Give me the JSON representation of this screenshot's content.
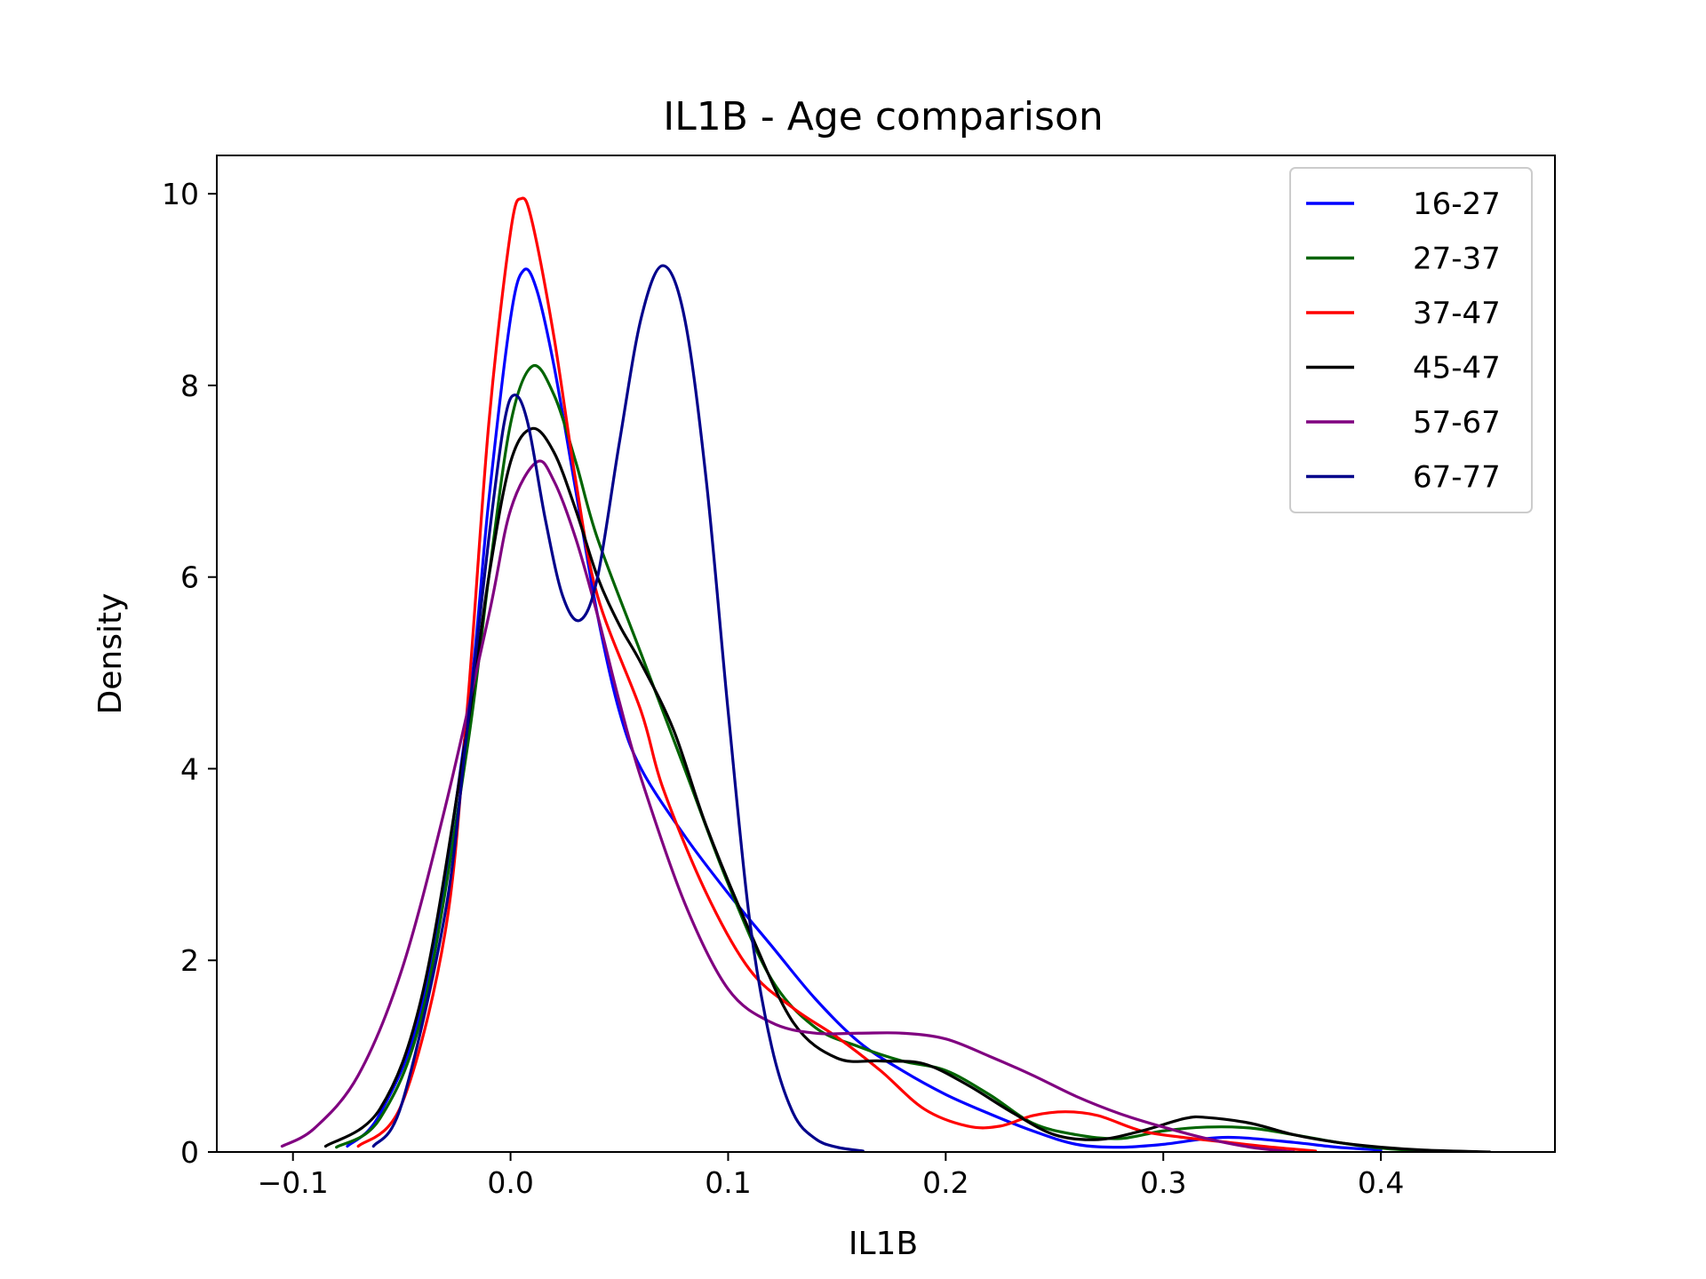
{
  "chart_data": {
    "type": "line",
    "title": "IL1B - Age comparison",
    "xlabel": "IL1B",
    "ylabel": "Density",
    "xlim": [
      -0.135,
      0.48
    ],
    "ylim": [
      0,
      10.4
    ],
    "xticks": [
      -0.1,
      0.0,
      0.1,
      0.2,
      0.3,
      0.4
    ],
    "xtick_labels": [
      "−0.1",
      "0.0",
      "0.1",
      "0.2",
      "0.3",
      "0.4"
    ],
    "yticks": [
      0,
      2,
      4,
      6,
      8,
      10
    ],
    "ytick_labels": [
      "0",
      "2",
      "4",
      "6",
      "8",
      "10"
    ],
    "grid": false,
    "legend_position": "top-right",
    "series": [
      {
        "name": "16-27",
        "color": "#0000ff",
        "points": [
          [
            -0.075,
            0.06
          ],
          [
            -0.06,
            0.4
          ],
          [
            -0.04,
            1.6
          ],
          [
            -0.02,
            4.5
          ],
          [
            -0.01,
            6.8
          ],
          [
            0.0,
            8.7
          ],
          [
            0.006,
            9.2
          ],
          [
            0.012,
            9.0
          ],
          [
            0.02,
            8.2
          ],
          [
            0.03,
            6.9
          ],
          [
            0.04,
            5.6
          ],
          [
            0.05,
            4.6
          ],
          [
            0.06,
            4.0
          ],
          [
            0.08,
            3.3
          ],
          [
            0.1,
            2.7
          ],
          [
            0.12,
            2.15
          ],
          [
            0.14,
            1.6
          ],
          [
            0.16,
            1.15
          ],
          [
            0.18,
            0.85
          ],
          [
            0.2,
            0.6
          ],
          [
            0.22,
            0.4
          ],
          [
            0.24,
            0.22
          ],
          [
            0.26,
            0.08
          ],
          [
            0.28,
            0.05
          ],
          [
            0.3,
            0.08
          ],
          [
            0.32,
            0.14
          ],
          [
            0.335,
            0.15
          ],
          [
            0.36,
            0.1
          ],
          [
            0.38,
            0.05
          ],
          [
            0.4,
            0.02
          ]
        ]
      },
      {
        "name": "27-37",
        "color": "#006400",
        "points": [
          [
            -0.08,
            0.05
          ],
          [
            -0.06,
            0.35
          ],
          [
            -0.04,
            1.5
          ],
          [
            -0.02,
            4.2
          ],
          [
            -0.01,
            6.0
          ],
          [
            0.0,
            7.6
          ],
          [
            0.01,
            8.2
          ],
          [
            0.02,
            7.9
          ],
          [
            0.03,
            7.2
          ],
          [
            0.04,
            6.4
          ],
          [
            0.06,
            5.2
          ],
          [
            0.08,
            4.0
          ],
          [
            0.1,
            2.8
          ],
          [
            0.12,
            1.8
          ],
          [
            0.14,
            1.3
          ],
          [
            0.16,
            1.1
          ],
          [
            0.18,
            0.95
          ],
          [
            0.2,
            0.85
          ],
          [
            0.22,
            0.6
          ],
          [
            0.24,
            0.3
          ],
          [
            0.26,
            0.18
          ],
          [
            0.28,
            0.14
          ],
          [
            0.3,
            0.22
          ],
          [
            0.32,
            0.26
          ],
          [
            0.34,
            0.25
          ],
          [
            0.36,
            0.18
          ],
          [
            0.38,
            0.1
          ],
          [
            0.4,
            0.04
          ],
          [
            0.42,
            0.01
          ]
        ]
      },
      {
        "name": "37-47",
        "color": "#ff0000",
        "points": [
          [
            -0.07,
            0.06
          ],
          [
            -0.05,
            0.5
          ],
          [
            -0.03,
            2.3
          ],
          [
            -0.02,
            4.6
          ],
          [
            -0.01,
            7.6
          ],
          [
            0.0,
            9.6
          ],
          [
            0.005,
            9.95
          ],
          [
            0.01,
            9.7
          ],
          [
            0.02,
            8.5
          ],
          [
            0.03,
            7.0
          ],
          [
            0.04,
            5.8
          ],
          [
            0.06,
            4.6
          ],
          [
            0.07,
            3.8
          ],
          [
            0.09,
            2.7
          ],
          [
            0.11,
            1.9
          ],
          [
            0.13,
            1.5
          ],
          [
            0.15,
            1.2
          ],
          [
            0.17,
            0.85
          ],
          [
            0.19,
            0.45
          ],
          [
            0.21,
            0.27
          ],
          [
            0.225,
            0.27
          ],
          [
            0.24,
            0.38
          ],
          [
            0.255,
            0.42
          ],
          [
            0.27,
            0.38
          ],
          [
            0.29,
            0.22
          ],
          [
            0.31,
            0.15
          ],
          [
            0.33,
            0.1
          ],
          [
            0.35,
            0.05
          ],
          [
            0.37,
            0.01
          ]
        ]
      },
      {
        "name": "45-47",
        "color": "#000000",
        "points": [
          [
            -0.085,
            0.06
          ],
          [
            -0.06,
            0.45
          ],
          [
            -0.04,
            1.7
          ],
          [
            -0.02,
            4.4
          ],
          [
            -0.01,
            6.0
          ],
          [
            0.0,
            7.2
          ],
          [
            0.01,
            7.55
          ],
          [
            0.02,
            7.3
          ],
          [
            0.03,
            6.7
          ],
          [
            0.04,
            6.0
          ],
          [
            0.05,
            5.5
          ],
          [
            0.06,
            5.1
          ],
          [
            0.075,
            4.4
          ],
          [
            0.09,
            3.4
          ],
          [
            0.11,
            2.3
          ],
          [
            0.13,
            1.35
          ],
          [
            0.15,
            0.98
          ],
          [
            0.17,
            0.95
          ],
          [
            0.19,
            0.92
          ],
          [
            0.21,
            0.7
          ],
          [
            0.23,
            0.42
          ],
          [
            0.25,
            0.18
          ],
          [
            0.27,
            0.13
          ],
          [
            0.29,
            0.22
          ],
          [
            0.31,
            0.35
          ],
          [
            0.32,
            0.36
          ],
          [
            0.34,
            0.3
          ],
          [
            0.36,
            0.18
          ],
          [
            0.38,
            0.1
          ],
          [
            0.4,
            0.05
          ],
          [
            0.42,
            0.02
          ],
          [
            0.45,
            0.0
          ]
        ]
      },
      {
        "name": "57-67",
        "color": "#800080",
        "points": [
          [
            -0.105,
            0.06
          ],
          [
            -0.09,
            0.25
          ],
          [
            -0.07,
            0.8
          ],
          [
            -0.05,
            1.9
          ],
          [
            -0.03,
            3.6
          ],
          [
            -0.01,
            5.6
          ],
          [
            0.0,
            6.7
          ],
          [
            0.012,
            7.2
          ],
          [
            0.02,
            7.0
          ],
          [
            0.03,
            6.4
          ],
          [
            0.04,
            5.6
          ],
          [
            0.05,
            4.7
          ],
          [
            0.06,
            3.9
          ],
          [
            0.08,
            2.6
          ],
          [
            0.1,
            1.7
          ],
          [
            0.12,
            1.35
          ],
          [
            0.14,
            1.24
          ],
          [
            0.16,
            1.24
          ],
          [
            0.18,
            1.24
          ],
          [
            0.2,
            1.18
          ],
          [
            0.22,
            1.0
          ],
          [
            0.24,
            0.8
          ],
          [
            0.26,
            0.58
          ],
          [
            0.28,
            0.4
          ],
          [
            0.3,
            0.26
          ],
          [
            0.32,
            0.14
          ],
          [
            0.34,
            0.05
          ],
          [
            0.36,
            0.0
          ]
        ]
      },
      {
        "name": "67-77",
        "color": "#00008b",
        "points": [
          [
            -0.063,
            0.06
          ],
          [
            -0.05,
            0.5
          ],
          [
            -0.03,
            2.5
          ],
          [
            -0.02,
            4.4
          ],
          [
            -0.01,
            6.4
          ],
          [
            -0.003,
            7.6
          ],
          [
            0.002,
            7.9
          ],
          [
            0.008,
            7.6
          ],
          [
            0.016,
            6.6
          ],
          [
            0.024,
            5.8
          ],
          [
            0.032,
            5.55
          ],
          [
            0.04,
            6.0
          ],
          [
            0.05,
            7.4
          ],
          [
            0.06,
            8.7
          ],
          [
            0.07,
            9.25
          ],
          [
            0.08,
            8.7
          ],
          [
            0.09,
            7.0
          ],
          [
            0.1,
            4.6
          ],
          [
            0.11,
            2.4
          ],
          [
            0.12,
            1.1
          ],
          [
            0.13,
            0.4
          ],
          [
            0.14,
            0.14
          ],
          [
            0.15,
            0.05
          ],
          [
            0.162,
            0.01
          ]
        ]
      }
    ]
  }
}
